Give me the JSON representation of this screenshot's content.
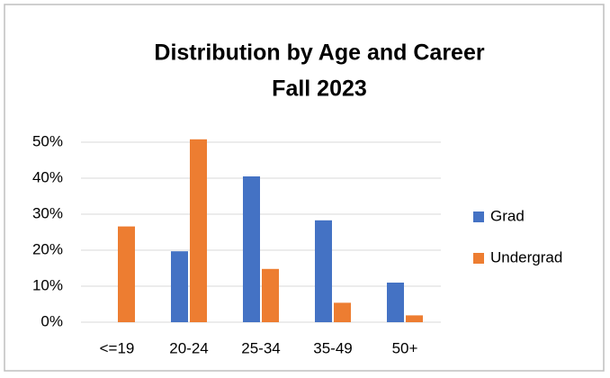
{
  "chart_data": {
    "type": "bar",
    "title": "Distribution by Age and Career",
    "subtitle": "Fall 2023",
    "categories": [
      "<=19",
      "20-24",
      "25-34",
      "35-49",
      "50+"
    ],
    "series": [
      {
        "name": "Grad",
        "color": "#4472c4",
        "values": [
          null,
          19.7,
          40.5,
          28.3,
          11.0
        ]
      },
      {
        "name": "Undergrad",
        "color": "#ed7d31",
        "values": [
          26.6,
          50.8,
          14.8,
          5.4,
          1.9
        ]
      }
    ],
    "ylim": [
      0,
      50
    ],
    "yticks": [
      {
        "value": 0,
        "label": "0%"
      },
      {
        "value": 10,
        "label": "10%"
      },
      {
        "value": 20,
        "label": "20%"
      },
      {
        "value": 30,
        "label": "30%"
      },
      {
        "value": 40,
        "label": "40%"
      },
      {
        "value": 50,
        "label": "50%"
      }
    ],
    "grid": true,
    "legend": "right"
  }
}
